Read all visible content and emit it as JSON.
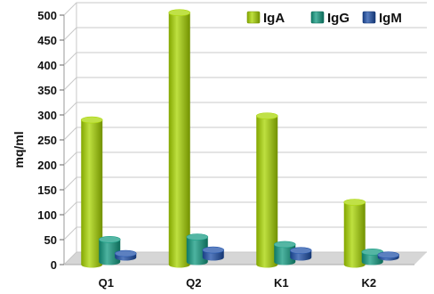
{
  "chart_data": {
    "type": "bar",
    "categories": [
      "Q1",
      "Q2",
      "K1",
      "K2"
    ],
    "series": [
      {
        "name": "IgA",
        "values": [
          290,
          505,
          298,
          125
        ],
        "color": "#a8d500"
      },
      {
        "name": "IgG",
        "values": [
          45,
          50,
          35,
          20
        ],
        "color": "#129a80"
      },
      {
        "name": "IgM",
        "values": [
          8,
          15,
          14,
          5
        ],
        "color": "#1d4fa8"
      }
    ],
    "ylabel": "mq/ml",
    "xlabel": "",
    "ylim": [
      0,
      500
    ],
    "yticks": [
      0,
      50,
      100,
      150,
      200,
      250,
      300,
      350,
      400,
      450,
      500
    ],
    "grid": true,
    "style": "3d-cylinder",
    "legend_position": "top-right",
    "colors": {
      "grid": "#c8c8c8",
      "floor": "#d6d6d6"
    }
  }
}
